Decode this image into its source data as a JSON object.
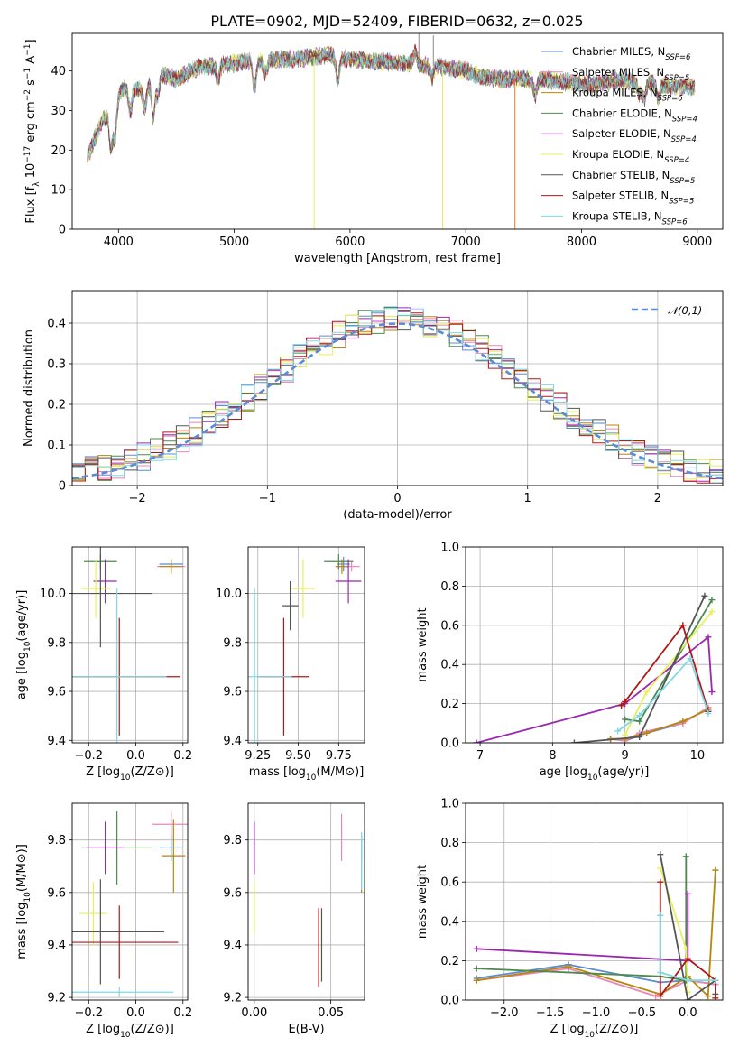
{
  "figure": {
    "title": "PLATE=0902, MJD=52409, FIBERID=0632, z=0.025"
  },
  "model_colors": [
    "#5b8bd6",
    "#e887b8",
    "#b8860b",
    "#4e8a4e",
    "#9b27b0",
    "#e6f05a",
    "#555555",
    "#b01818",
    "#7fd8e4"
  ],
  "chart_data": [
    {
      "id": "spectrum",
      "type": "line",
      "xlabel": "wavelength [Angstrom, rest frame]",
      "ylabel": "Flux [f_λ 10^-17 erg cm^-2 s^-1 A^-1]",
      "xlim": [
        3600,
        9220
      ],
      "ylim": [
        0,
        49.5
      ],
      "xticks": [
        4000,
        5000,
        6000,
        7000,
        8000,
        9000
      ],
      "yticks": [
        0,
        10,
        20,
        30,
        40
      ],
      "legend_position": "top-right",
      "series": [
        {
          "name": "Chabrier MILES, N_SSP=6",
          "color": "#5b8bd6"
        },
        {
          "name": "Salpeter MILES, N_SSP=5",
          "color": "#e887b8"
        },
        {
          "name": "Kroupa MILES, N_SSP=6",
          "color": "#b8860b"
        },
        {
          "name": "Chabrier ELODIE, N_SSP=4",
          "color": "#4e8a4e"
        },
        {
          "name": "Salpeter ELODIE, N_SSP=4",
          "color": "#9b27b0"
        },
        {
          "name": "Kroupa ELODIE, N_SSP=4",
          "color": "#e6f05a"
        },
        {
          "name": "Chabrier STELIB, N_SSP=5",
          "color": "#555555"
        },
        {
          "name": "Salpeter STELIB, N_SSP=5",
          "color": "#b01818"
        },
        {
          "name": "Kroupa STELIB, N_SSP=6",
          "color": "#7fd8e4"
        }
      ],
      "continuum": [
        [
          3730,
          18
        ],
        [
          3850,
          27
        ],
        [
          3950,
          31
        ],
        [
          4050,
          36
        ],
        [
          4200,
          35
        ],
        [
          4350,
          39
        ],
        [
          4500,
          38
        ],
        [
          4700,
          41
        ],
        [
          5000,
          42
        ],
        [
          5200,
          42.5
        ],
        [
          5500,
          43
        ],
        [
          5800,
          44
        ],
        [
          6000,
          43
        ],
        [
          6200,
          42.5
        ],
        [
          6500,
          42
        ],
        [
          6800,
          41
        ],
        [
          7000,
          40
        ],
        [
          7200,
          38
        ],
        [
          7500,
          38
        ],
        [
          7800,
          37.5
        ],
        [
          8100,
          36.5
        ],
        [
          8300,
          37.5
        ],
        [
          8600,
          37
        ],
        [
          8800,
          36
        ],
        [
          8980,
          36
        ]
      ],
      "features": [
        [
          3934,
          -10
        ],
        [
          3969,
          -9
        ],
        [
          4102,
          -6
        ],
        [
          4227,
          -5
        ],
        [
          4300,
          -9
        ],
        [
          4340,
          -5
        ],
        [
          4861,
          -4
        ],
        [
          5175,
          -7
        ],
        [
          5270,
          -3
        ],
        [
          5893,
          -6
        ],
        [
          6563,
          -4
        ],
        [
          6563,
          7
        ],
        [
          6708,
          -3
        ],
        [
          7600,
          -4
        ],
        [
          8498,
          -3
        ],
        [
          8542,
          -4
        ],
        [
          8662,
          -4
        ]
      ],
      "spikes": [
        [
          5690,
          0
        ],
        [
          6800,
          0
        ],
        [
          7425,
          0
        ],
        [
          6595,
          52
        ],
        [
          6720,
          49
        ]
      ]
    },
    {
      "id": "residuals",
      "type": "histogram",
      "xlabel": "(data-model)/error",
      "ylabel": "Normed distribution",
      "xlim": [
        -2.5,
        2.5
      ],
      "ylim": [
        0,
        0.48
      ],
      "xticks": [
        -2,
        -1,
        0,
        1,
        2
      ],
      "yticks": [
        0.0,
        0.1,
        0.2,
        0.3,
        0.4
      ],
      "bin_width": 0.1,
      "legend": "𝒩(0,1)",
      "reference_curve": {
        "type": "gaussian",
        "mean": 0,
        "sigma": 1,
        "color": "#5b8bd6"
      }
    },
    {
      "id": "age-vs-Z",
      "type": "scatter",
      "xlabel": "Z [log10(Z/Z⊙)]",
      "ylabel": "age  [log10(age/yr)]",
      "xlim": [
        -0.27,
        0.22
      ],
      "ylim": [
        9.39,
        10.19
      ],
      "xticks": [
        -0.2,
        0.0,
        0.2
      ],
      "yticks": [
        9.4,
        9.6,
        9.8,
        10.0
      ],
      "points": [
        {
          "x": 0.15,
          "y": 10.12,
          "xerr": 0.05,
          "yerr": 0.02,
          "color": "#5b8bd6"
        },
        {
          "x": 0.15,
          "y": 10.11,
          "xerr": 0.06,
          "yerr": 0.02,
          "color": "#e887b8"
        },
        {
          "x": 0.15,
          "y": 10.11,
          "xerr": 0.05,
          "yerr": 0.03,
          "color": "#b8860b"
        },
        {
          "x": -0.15,
          "y": 10.13,
          "xerr": 0.07,
          "yerr": 0.03,
          "color": "#4e8a4e"
        },
        {
          "x": -0.13,
          "y": 10.05,
          "xerr": 0.05,
          "yerr": 0.09,
          "color": "#9b27b0"
        },
        {
          "x": -0.17,
          "y": 10.02,
          "xerr": 0.06,
          "yerr": 0.12,
          "color": "#e6f05a"
        },
        {
          "x": -0.15,
          "y": 10.0,
          "xerr": 0.22,
          "yerr": 0.22,
          "color": "#555555"
        },
        {
          "x": -0.07,
          "y": 9.66,
          "xerr": 0.26,
          "yerr": 0.24,
          "color": "#b01818"
        },
        {
          "x": -0.08,
          "y": 9.66,
          "xerr": 0.21,
          "yerr": 0.36,
          "color": "#7fd8e4"
        }
      ]
    },
    {
      "id": "age-vs-mass",
      "type": "scatter",
      "xlabel": "mass [log10(M/M⊙)]",
      "ylabel": "",
      "xlim": [
        9.19,
        9.91
      ],
      "ylim": [
        9.39,
        10.19
      ],
      "xticks": [
        9.25,
        9.5,
        9.75
      ],
      "yticks": [
        9.4,
        9.6,
        9.8,
        10.0
      ],
      "points": [
        {
          "x": 9.78,
          "y": 10.12,
          "xerr": 0.04,
          "yerr": 0.03,
          "color": "#5b8bd6"
        },
        {
          "x": 9.83,
          "y": 10.11,
          "xerr": 0.05,
          "yerr": 0.02,
          "color": "#e887b8"
        },
        {
          "x": 9.77,
          "y": 10.11,
          "xerr": 0.04,
          "yerr": 0.03,
          "color": "#b8860b"
        },
        {
          "x": 9.75,
          "y": 10.13,
          "xerr": 0.09,
          "yerr": 0.03,
          "color": "#4e8a4e"
        },
        {
          "x": 9.81,
          "y": 10.05,
          "xerr": 0.08,
          "yerr": 0.09,
          "color": "#9b27b0"
        },
        {
          "x": 9.53,
          "y": 10.02,
          "xerr": 0.07,
          "yerr": 0.12,
          "color": "#e6f05a"
        },
        {
          "x": 9.45,
          "y": 9.95,
          "xerr": 0.05,
          "yerr": 0.1,
          "color": "#555555"
        },
        {
          "x": 9.41,
          "y": 9.66,
          "xerr": 0.16,
          "yerr": 0.24,
          "color": "#b01818"
        },
        {
          "x": 9.23,
          "y": 9.66,
          "xerr": 0.23,
          "yerr": 0.36,
          "color": "#7fd8e4"
        }
      ]
    },
    {
      "id": "weight-vs-age",
      "type": "line",
      "xlabel": "age  [log10(age/yr)]",
      "ylabel": "mass weight",
      "xlim": [
        6.8,
        10.35
      ],
      "ylim": [
        0,
        1.0
      ],
      "xticks": [
        7,
        8,
        9,
        10
      ],
      "yticks": [
        0.0,
        0.2,
        0.4,
        0.6,
        0.8,
        1.0
      ],
      "series": [
        {
          "color": "#5b8bd6",
          "x": [
            8.8,
            9.0,
            9.3,
            9.8,
            10.15
          ],
          "y": [
            0.02,
            0.01,
            0.05,
            0.1,
            0.18
          ]
        },
        {
          "color": "#e887b8",
          "x": [
            8.8,
            9.0,
            9.2,
            9.8,
            10.15
          ],
          "y": [
            0.02,
            0.01,
            0.05,
            0.1,
            0.18
          ]
        },
        {
          "color": "#b8860b",
          "x": [
            8.8,
            9.0,
            9.3,
            9.8,
            10.15
          ],
          "y": [
            0.02,
            0.02,
            0.05,
            0.11,
            0.17
          ]
        },
        {
          "color": "#4e8a4e",
          "x": [
            9.0,
            9.2,
            10.2
          ],
          "y": [
            0.12,
            0.11,
            0.73
          ]
        },
        {
          "color": "#9b27b0",
          "x": [
            6.95,
            9.0,
            10.15,
            10.2
          ],
          "y": [
            0.0,
            0.2,
            0.54,
            0.26
          ]
        },
        {
          "color": "#e6f05a",
          "x": [
            9.0,
            9.3,
            10.2
          ],
          "y": [
            0.04,
            0.26,
            0.67
          ]
        },
        {
          "color": "#555555",
          "x": [
            8.3,
            9.2,
            10.1
          ],
          "y": [
            0.0,
            0.03,
            0.75
          ]
        },
        {
          "color": "#b01818",
          "x": [
            8.95,
            9.0,
            9.8,
            10.15
          ],
          "y": [
            0.19,
            0.21,
            0.6,
            0.16
          ]
        },
        {
          "color": "#7fd8e4",
          "x": [
            8.9,
            9.2,
            9.9,
            10.15
          ],
          "y": [
            0.06,
            0.14,
            0.43,
            0.15
          ]
        }
      ]
    },
    {
      "id": "mass-vs-Z",
      "type": "scatter",
      "xlabel": "Z [log10(Z/Z⊙)]",
      "ylabel": "mass [log10(M/M⊙)]",
      "xlim": [
        -0.27,
        0.22
      ],
      "ylim": [
        9.19,
        9.94
      ],
      "xticks": [
        -0.2,
        0.0,
        0.2
      ],
      "yticks": [
        9.2,
        9.4,
        9.6,
        9.8
      ],
      "points": [
        {
          "x": 0.15,
          "y": 9.77,
          "xerr": 0.05,
          "yerr": 0.05,
          "color": "#5b8bd6"
        },
        {
          "x": 0.15,
          "y": 9.86,
          "xerr": 0.08,
          "yerr": 0.05,
          "color": "#e887b8"
        },
        {
          "x": 0.16,
          "y": 9.74,
          "xerr": 0.05,
          "yerr": 0.14,
          "color": "#b8860b"
        },
        {
          "x": -0.08,
          "y": 9.77,
          "xerr": 0.15,
          "yerr": 0.14,
          "color": "#4e8a4e"
        },
        {
          "x": -0.13,
          "y": 9.77,
          "xerr": 0.08,
          "yerr": 0.1,
          "color": "#9b27b0"
        },
        {
          "x": -0.18,
          "y": 9.52,
          "xerr": 0.06,
          "yerr": 0.12,
          "color": "#e6f05a"
        },
        {
          "x": -0.15,
          "y": 9.45,
          "xerr": 0.27,
          "yerr": 0.2,
          "color": "#555555"
        },
        {
          "x": -0.07,
          "y": 9.41,
          "xerr": 0.25,
          "yerr": 0.14,
          "color": "#b01818"
        },
        {
          "x": -0.07,
          "y": 9.22,
          "xerr": 0.23,
          "yerr": 0.02,
          "color": "#7fd8e4"
        }
      ]
    },
    {
      "id": "mass-vs-EBV",
      "type": "scatter",
      "xlabel": "E(B-V)",
      "ylabel": "",
      "xlim": [
        -0.004,
        0.072
      ],
      "ylim": [
        9.19,
        9.94
      ],
      "xticks": [
        0.0,
        0.05
      ],
      "yticks": [
        9.2,
        9.4,
        9.6,
        9.8
      ],
      "points": [
        {
          "x": 0.07,
          "y": 9.77,
          "xerr": 0,
          "yerr": 0.05,
          "color": "#5b8bd6"
        },
        {
          "x": 0.057,
          "y": 9.81,
          "xerr": 0,
          "yerr": 0.09,
          "color": "#e887b8"
        },
        {
          "x": 0.07,
          "y": 9.7,
          "xerr": 0,
          "yerr": 0.1,
          "color": "#b8860b"
        },
        {
          "x": 0.0,
          "y": 9.77,
          "xerr": 0,
          "yerr": 0.1,
          "color": "#4e8a4e"
        },
        {
          "x": 0.0,
          "y": 9.77,
          "xerr": 0,
          "yerr": 0.1,
          "color": "#9b27b0"
        },
        {
          "x": 0.0,
          "y": 9.54,
          "xerr": 0,
          "yerr": 0.1,
          "color": "#e6f05a"
        },
        {
          "x": 0.044,
          "y": 9.4,
          "xerr": 0,
          "yerr": 0.14,
          "color": "#555555"
        },
        {
          "x": 0.042,
          "y": 9.39,
          "xerr": 0,
          "yerr": 0.15,
          "color": "#b01818"
        },
        {
          "x": 0.07,
          "y": 9.72,
          "xerr": 0,
          "yerr": 0.11,
          "color": "#7fd8e4"
        }
      ]
    },
    {
      "id": "weight-vs-Z",
      "type": "line",
      "xlabel": "Z [log10(Z/Z⊙)]",
      "ylabel": "mass weight",
      "xlim": [
        -2.42,
        0.38
      ],
      "ylim": [
        0,
        1.0
      ],
      "xticks": [
        -2.0,
        -1.5,
        -1.0,
        -0.5,
        0.0
      ],
      "yticks": [
        0.0,
        0.2,
        0.4,
        0.6,
        0.8,
        1.0
      ],
      "series": [
        {
          "color": "#5b8bd6",
          "x": [
            -2.3,
            -1.3,
            -0.3,
            0.0,
            0.3
          ],
          "y": [
            0.11,
            0.18,
            0.09,
            0.1,
            0.08
          ]
        },
        {
          "color": "#e887b8",
          "x": [
            -2.3,
            -1.3,
            -0.35,
            0.0,
            0.3
          ],
          "y": [
            0.1,
            0.16,
            0.02,
            0.1,
            0.08
          ]
        },
        {
          "color": "#b8860b",
          "x": [
            -2.3,
            -1.3,
            -0.3,
            0.0,
            0.22,
            0.3
          ],
          "y": [
            0.1,
            0.17,
            0.03,
            0.12,
            0.02,
            0.66
          ]
        },
        {
          "color": "#4e8a4e",
          "x": [
            -2.3,
            -0.3,
            -0.02,
            -0.02
          ],
          "y": [
            0.16,
            0.12,
            0.1,
            0.73
          ]
        },
        {
          "color": "#9b27b0",
          "x": [
            -2.3,
            0.0,
            0.0
          ],
          "y": [
            0.26,
            0.2,
            0.54
          ]
        },
        {
          "color": "#e6f05a",
          "x": [
            -0.3,
            -0.02,
            0.0
          ],
          "y": [
            0.67,
            0.26,
            0.04
          ]
        },
        {
          "color": "#555555",
          "x": [
            -0.3,
            0.0,
            0.3,
            0.3
          ],
          "y": [
            0.74,
            0.0,
            0.1,
            0.03
          ]
        },
        {
          "color": "#b01818",
          "x": [
            -0.3,
            -0.3,
            0.0,
            0.3,
            0.3
          ],
          "y": [
            0.6,
            0.02,
            0.21,
            0.1,
            0.01
          ]
        },
        {
          "color": "#7fd8e4",
          "x": [
            -0.3,
            -0.3,
            0.0,
            0.3
          ],
          "y": [
            0.43,
            0.14,
            0.1,
            0.1
          ]
        }
      ]
    }
  ]
}
